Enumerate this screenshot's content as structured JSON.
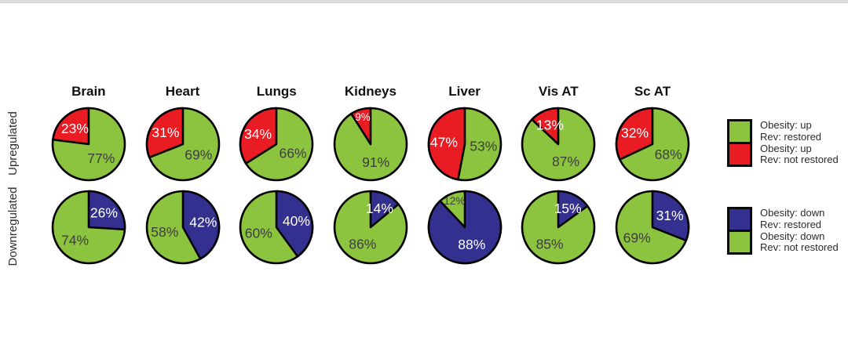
{
  "figure": {
    "top_strip_color": "#dcdcdc"
  },
  "y_axis": {
    "top_label": "Upregulated",
    "bottom_label": "Downregulated"
  },
  "chart_data": {
    "type": "pie",
    "layout": "2 rows x 7 columns of pies, legends on right",
    "organs": [
      "Brain",
      "Heart",
      "Lungs",
      "Kidneys",
      "Liver",
      "Vis AT",
      "Sc AT"
    ],
    "colors": {
      "green": "#8CC440",
      "red": "#E91B23",
      "blue": "#333090",
      "outline": "#000000",
      "label_dark": "#3d3d3d",
      "label_light": "#ffffff"
    },
    "rows": [
      {
        "name": "Upregulated",
        "slice_color": "red",
        "direction": "ccw",
        "slice_pct": [
          23,
          31,
          34,
          9,
          47,
          13,
          32
        ],
        "green_pct": [
          77,
          69,
          66,
          91,
          53,
          87,
          68
        ]
      },
      {
        "name": "Downregulated",
        "slice_color": "blue",
        "direction": "cw",
        "slice_pct": [
          26,
          42,
          40,
          14,
          88,
          15,
          31
        ],
        "green_pct": [
          74,
          58,
          60,
          86,
          12,
          85,
          69
        ]
      }
    ],
    "legend_position": "right",
    "legends": [
      {
        "entries": [
          {
            "color": "green",
            "label_lines": [
              "Obesity: up",
              "Rev: restored"
            ]
          },
          {
            "color": "red",
            "label_lines": [
              "Obesity: up",
              "Rev: not restored"
            ]
          }
        ]
      },
      {
        "entries": [
          {
            "color": "blue",
            "label_lines": [
              "Obesity: down",
              "Rev: restored"
            ]
          },
          {
            "color": "green",
            "label_lines": [
              "Obesity: down",
              "Rev: not restored"
            ]
          }
        ]
      }
    ]
  }
}
